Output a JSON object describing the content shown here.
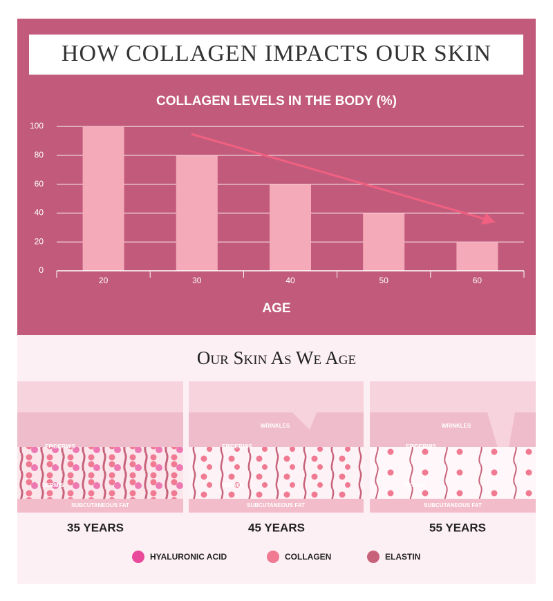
{
  "header": {
    "title": "HOW COLLAGEN IMPACTS OUR SKIN"
  },
  "chart_data": {
    "type": "bar",
    "title": "COLLAGEN LEVELS IN THE BODY (%)",
    "x_label": "AGE",
    "categories": [
      "20",
      "30",
      "40",
      "50",
      "60"
    ],
    "values": [
      100,
      80,
      60,
      40,
      20
    ],
    "color": "#f4aab9",
    "ylim": [
      0,
      100
    ],
    "yticks": [
      0,
      20,
      40,
      60,
      80,
      100
    ],
    "grid": true
  },
  "skin_section": {
    "title": "Our Skin As We Age",
    "panels": [
      {
        "epidermis": "EPIDERMIS",
        "dermis": "DERMIS",
        "fat": "SUBCUTANEOUS FAT",
        "age": "35 YEARS"
      },
      {
        "wrinkles": "WRINKLES",
        "epidermis": "EPIDERMIS",
        "dermis": "DERMIS",
        "fat": "SUBCUTANEOUS FAT",
        "age": "45 YEARS"
      },
      {
        "wrinkles": "WRINKLES",
        "epidermis": "EPIDERMIS",
        "dermis": "DERMIS",
        "fat": "SUBCUTANEOUS FAT",
        "age": "55 YEARS"
      }
    ],
    "legend": [
      {
        "label": "HYALURONIC ACID",
        "color": "#e8499a"
      },
      {
        "label": "COLLAGEN",
        "color": "#ef7a92"
      },
      {
        "label": "ELASTIN",
        "color": "#c8627a"
      }
    ]
  }
}
